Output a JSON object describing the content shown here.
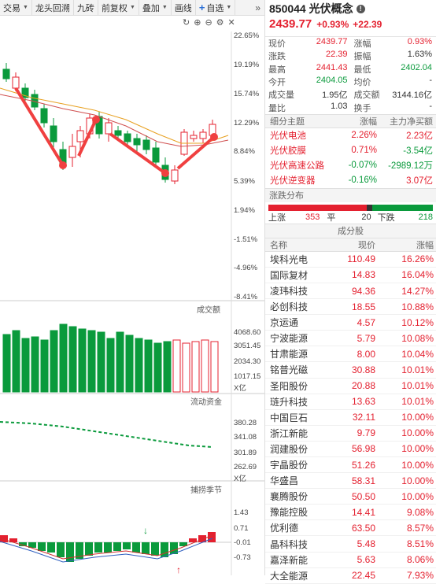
{
  "toolbar": {
    "items": [
      "交易",
      "龙头回溯",
      "九砖",
      "前复权",
      "叠加",
      "画线",
      "自选"
    ],
    "more_icon": "double-chevron-right"
  },
  "chart": {
    "axis_labels": [
      "22.65%",
      "19.19%",
      "15.74%",
      "12.29%",
      "8.84%",
      "5.39%",
      "1.94%",
      "-1.51%",
      "-4.96%",
      "-8.41%"
    ],
    "volume_label": "成交额",
    "volume_axis": [
      "4068.60",
      "3051.45",
      "2034.30",
      "1017.15",
      "X亿"
    ],
    "flow_label": "流动资金",
    "flow_axis": [
      "380.28",
      "341.08",
      "301.89",
      "262.69",
      "X亿"
    ],
    "osc_label": "捕捞季节",
    "osc_axis": [
      "1.43",
      "0.71",
      "-0.01",
      "-0.73"
    ]
  },
  "quote": {
    "code": "850044",
    "name": "光伏概念",
    "price": "2439.77",
    "change_pct": "+0.93%",
    "change": "+22.39",
    "rows": [
      {
        "l_lbl": "现价",
        "l_val": "2439.77",
        "l_cls": "red",
        "r_lbl": "涨幅",
        "r_val": "0.93%",
        "r_cls": "red"
      },
      {
        "l_lbl": "涨跌",
        "l_val": "22.39",
        "l_cls": "red",
        "r_lbl": "振幅",
        "r_val": "1.63%",
        "r_cls": ""
      },
      {
        "l_lbl": "最高",
        "l_val": "2441.43",
        "l_cls": "red",
        "r_lbl": "最低",
        "r_val": "2402.04",
        "r_cls": "green"
      },
      {
        "l_lbl": "今开",
        "l_val": "2404.05",
        "l_cls": "green",
        "r_lbl": "均价",
        "r_val": "-",
        "r_cls": ""
      },
      {
        "l_lbl": "成交量",
        "l_val": "1.95亿",
        "l_cls": "",
        "r_lbl": "成交额",
        "r_val": "3144.16亿",
        "r_cls": ""
      },
      {
        "l_lbl": "量比",
        "l_val": "1.03",
        "l_cls": "",
        "r_lbl": "换手",
        "r_val": "-",
        "r_cls": ""
      }
    ]
  },
  "topics": {
    "headers": [
      "细分主题",
      "涨幅",
      "主力净买额"
    ],
    "rows": [
      {
        "name": "光伏电池",
        "pct": "2.26%",
        "pct_cls": "red",
        "net": "2.23亿",
        "net_cls": "red"
      },
      {
        "name": "光伏胶膜",
        "pct": "0.71%",
        "pct_cls": "red",
        "net": "-3.54亿",
        "net_cls": "green"
      },
      {
        "name": "光伏高速公路",
        "pct": "-0.07%",
        "pct_cls": "green",
        "net": "-2989.12万",
        "net_cls": "green"
      },
      {
        "name": "光伏逆变器",
        "pct": "-0.16%",
        "pct_cls": "green",
        "net": "3.07亿",
        "net_cls": "red"
      }
    ]
  },
  "distribution": {
    "title": "涨跌分布",
    "up_label": "上涨",
    "up": "353",
    "flat_label": "平",
    "flat": "20",
    "down_label": "下跌",
    "down": "218",
    "colors": {
      "up": "#e4202f",
      "flat": "#333333",
      "down": "#0a9a3c"
    }
  },
  "constituents": {
    "title": "成分股",
    "headers": [
      "名称",
      "现价",
      "涨幅"
    ],
    "rows": [
      {
        "name": "埃科光电",
        "price": "110.49",
        "pct": "16.26%"
      },
      {
        "name": "国际复材",
        "price": "14.83",
        "pct": "16.04%"
      },
      {
        "name": "凌玮科技",
        "price": "94.36",
        "pct": "14.27%"
      },
      {
        "name": "必创科技",
        "price": "18.55",
        "pct": "10.88%"
      },
      {
        "name": "京运通",
        "price": "4.57",
        "pct": "10.12%"
      },
      {
        "name": "宁波能源",
        "price": "5.79",
        "pct": "10.08%"
      },
      {
        "name": "甘肃能源",
        "price": "8.00",
        "pct": "10.04%"
      },
      {
        "name": "铭普光磁",
        "price": "30.88",
        "pct": "10.01%"
      },
      {
        "name": "圣阳股份",
        "price": "20.88",
        "pct": "10.01%"
      },
      {
        "name": "琏升科技",
        "price": "13.63",
        "pct": "10.01%"
      },
      {
        "name": "中国巨石",
        "price": "32.11",
        "pct": "10.00%"
      },
      {
        "name": "浙江新能",
        "price": "9.79",
        "pct": "10.00%"
      },
      {
        "name": "润建股份",
        "price": "56.98",
        "pct": "10.00%"
      },
      {
        "name": "宇晶股份",
        "price": "51.26",
        "pct": "10.00%"
      },
      {
        "name": "华盛昌",
        "price": "58.31",
        "pct": "10.00%"
      },
      {
        "name": "襄腾股份",
        "price": "50.50",
        "pct": "10.00%"
      },
      {
        "name": "豫能控股",
        "price": "14.41",
        "pct": "9.08%"
      },
      {
        "name": "优利德",
        "price": "63.50",
        "pct": "8.57%"
      },
      {
        "name": "晶科科技",
        "price": "5.48",
        "pct": "8.51%"
      },
      {
        "name": "嘉泽新能",
        "price": "5.63",
        "pct": "8.06%"
      },
      {
        "name": "大全能源",
        "price": "22.45",
        "pct": "7.93%"
      }
    ]
  }
}
